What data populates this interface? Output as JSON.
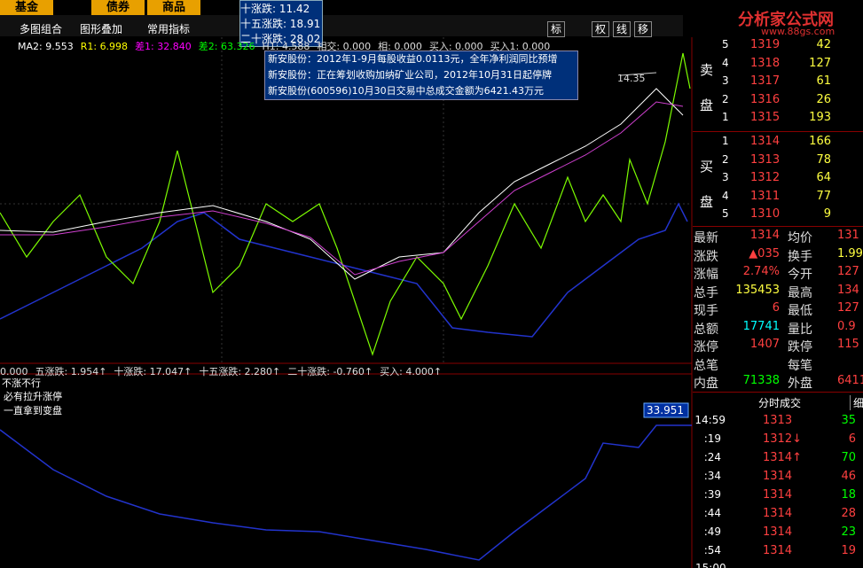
{
  "top_tabs": [
    "基金",
    "债券",
    "商品"
  ],
  "tooltip": [
    "十涨跌: 11.42",
    "十五涨跌: 18.91",
    "二十涨跌: 28.02"
  ],
  "toolbar": [
    "多图组合",
    "图形叠加",
    "常用指标"
  ],
  "tool_buttons": [
    "标",
    "权",
    "线",
    "移"
  ],
  "indicator_line": [
    "MA2: 9.553",
    "R1: 6.998",
    "差1: 32.840",
    "差2: 63.326",
    "H1: 4.588",
    "相交: 0.000",
    "相: 0.000",
    "买入: 0.000",
    "买入1: 0.000"
  ],
  "news": [
    "新安股份：2012年1-9月每股收益0.0113元，全年净利润同比预增",
    "新安股份：正在筹划收购加纳矿业公司，2012年10月31日起停牌",
    "新安股份(600596)10月30日交易中总成交金额为6421.43万元"
  ],
  "price_marker": "14.35",
  "lower_indicator": [
    "0.000",
    "五涨跌: 1.954↑",
    "十涨跌: 17.047↑",
    "十五涨跌: 2.280↑",
    "二十涨跌: -0.760↑",
    "买入: 4.000↑"
  ],
  "notes": [
    "不涨不行",
    "必有拉升涨停",
    "一直拿到变盘"
  ],
  "lower_value": "33.951",
  "logo": {
    "title": "分析家公式网",
    "url": "www.88gs.com"
  },
  "order_book": {
    "sell_label": [
      "卖",
      "盘"
    ],
    "buy_label": [
      "买",
      "盘"
    ],
    "sell": [
      {
        "level": "5",
        "price": "1319",
        "volume": "42"
      },
      {
        "level": "4",
        "price": "1318",
        "volume": "127"
      },
      {
        "level": "3",
        "price": "1317",
        "volume": "61"
      },
      {
        "level": "2",
        "price": "1316",
        "volume": "26"
      },
      {
        "level": "1",
        "price": "1315",
        "volume": "193"
      }
    ],
    "buy": [
      {
        "level": "1",
        "price": "1314",
        "volume": "166"
      },
      {
        "level": "2",
        "price": "1313",
        "volume": "78"
      },
      {
        "level": "3",
        "price": "1312",
        "volume": "64"
      },
      {
        "level": "4",
        "price": "1311",
        "volume": "77"
      },
      {
        "level": "5",
        "price": "1310",
        "volume": "9"
      }
    ]
  },
  "stats": [
    [
      "最新",
      "1314",
      "均价",
      "131"
    ],
    [
      "涨跌",
      "▲035",
      "换手",
      "1.99"
    ],
    [
      "涨幅",
      "2.74%",
      "今开",
      "127"
    ],
    [
      "总手",
      "135453",
      "最高",
      "134"
    ],
    [
      "现手",
      "6",
      "最低",
      "127"
    ],
    [
      "总额",
      "17741",
      "量比",
      "0.9"
    ],
    [
      "涨停",
      "1407",
      "跌停",
      "115"
    ],
    [
      "总笔",
      "",
      "每笔",
      ""
    ],
    [
      "内盘",
      "71338",
      "外盘",
      "6411"
    ]
  ],
  "trades": {
    "title": "分时成交",
    "tab": "细",
    "rows": [
      [
        "14:59",
        "1313",
        "35"
      ],
      [
        ":19",
        "1312↓",
        "6"
      ],
      [
        ":24",
        "1314↑",
        "70"
      ],
      [
        ":34",
        "1314",
        "46"
      ],
      [
        ":39",
        "1314",
        "18"
      ],
      [
        ":44",
        "1314",
        "28"
      ],
      [
        ":49",
        "1314",
        "23"
      ],
      [
        ":54",
        "1314",
        "19"
      ]
    ],
    "next_time": "15:00"
  }
}
